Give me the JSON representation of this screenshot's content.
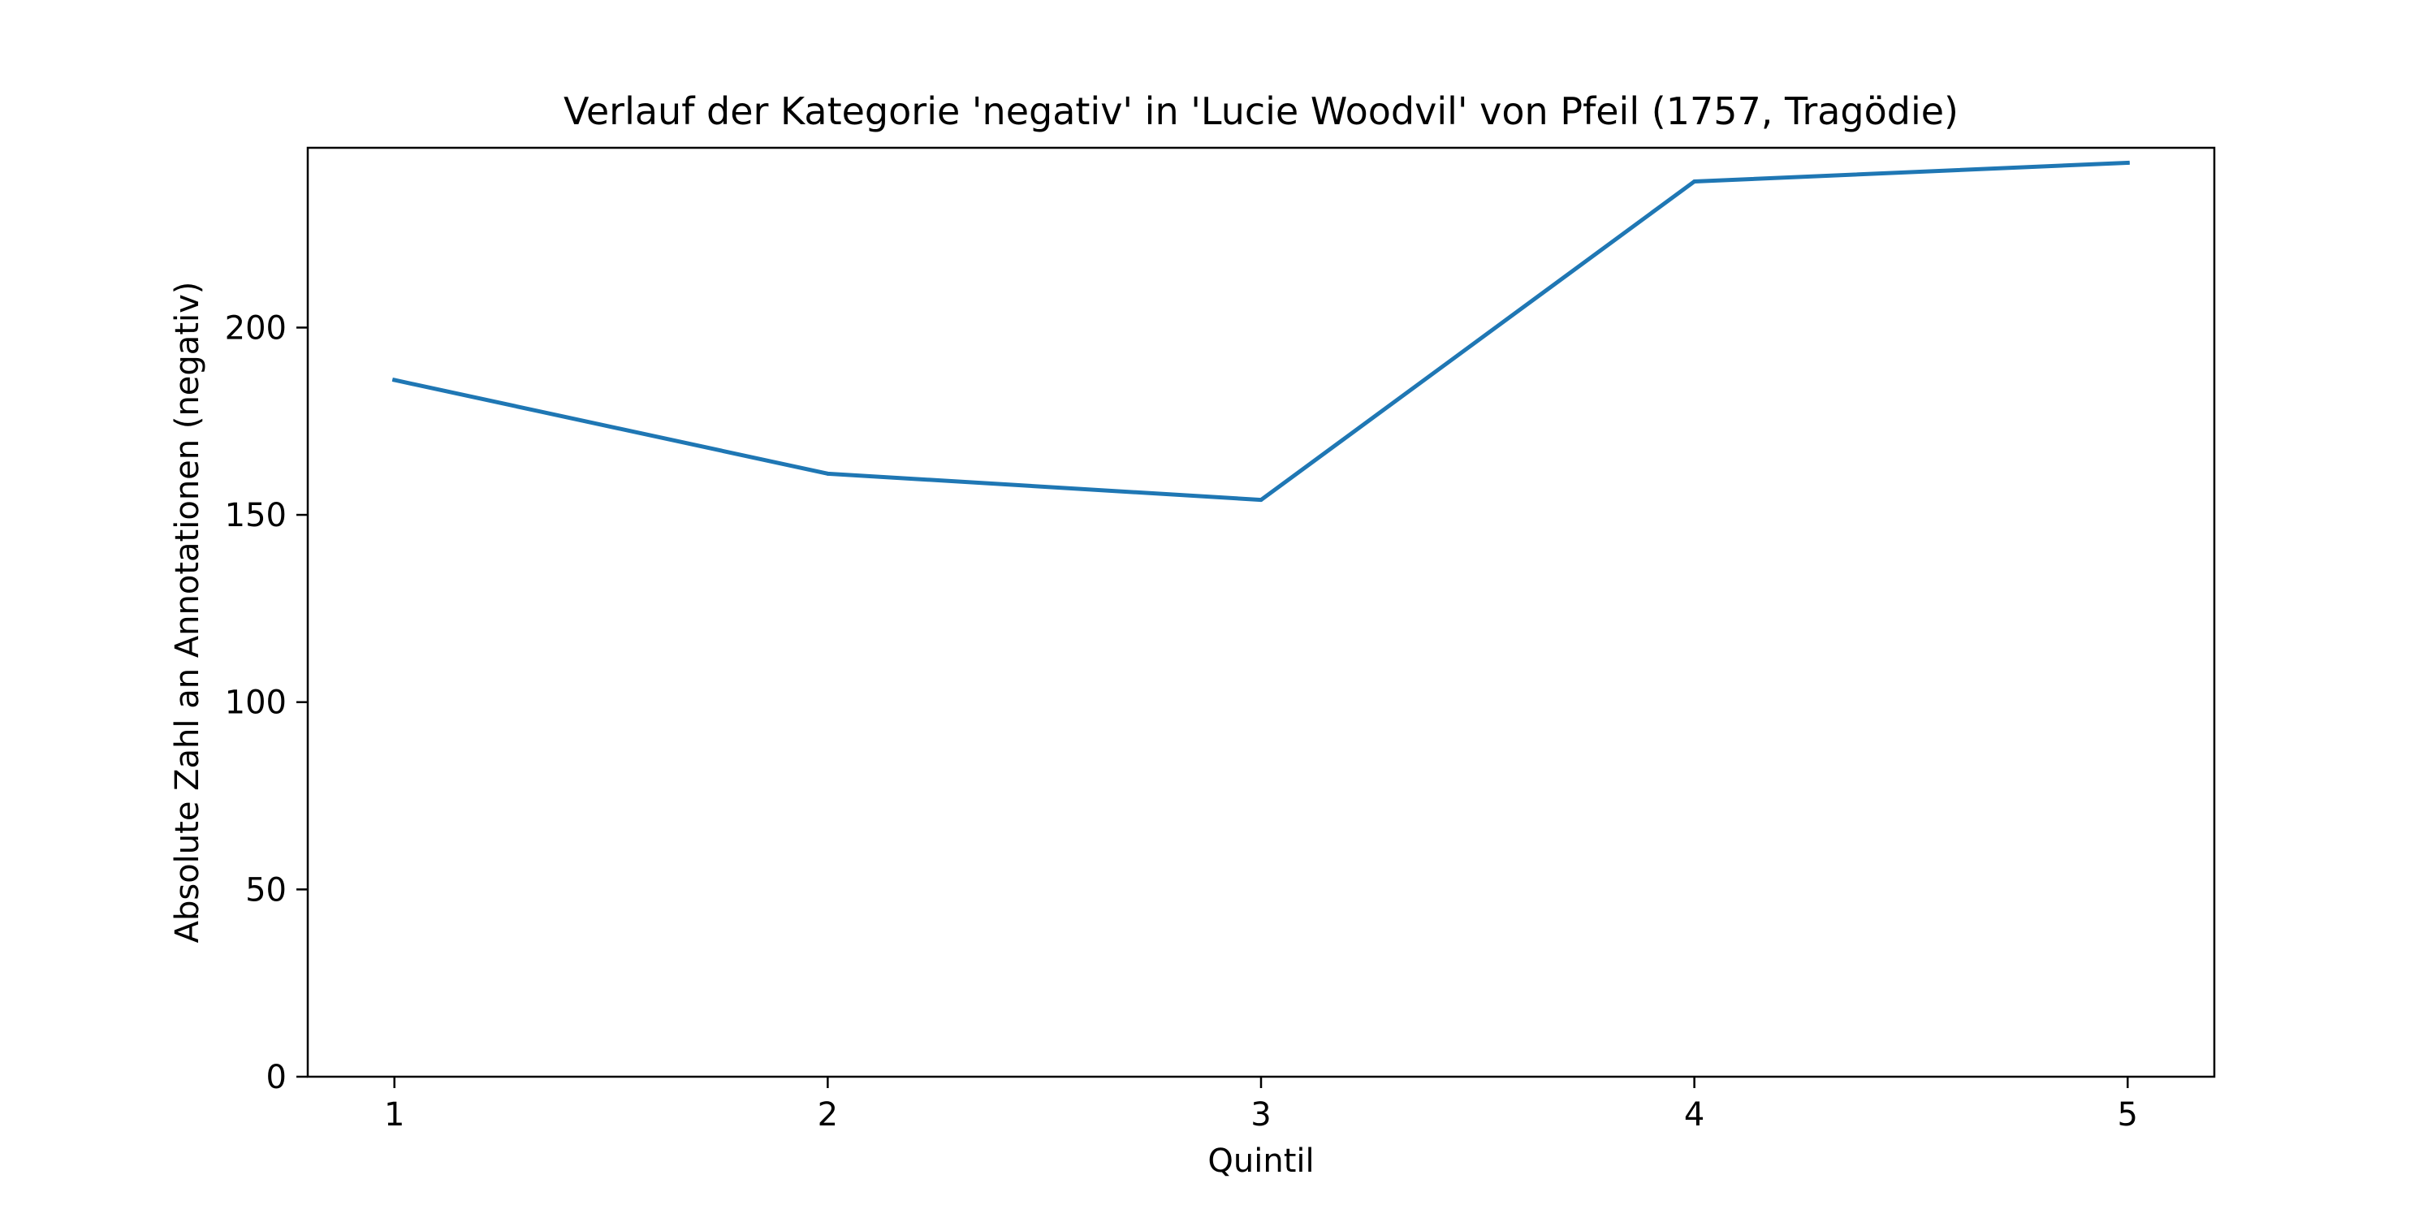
{
  "chart_data": {
    "type": "line",
    "title": "Verlauf der Kategorie 'negativ' in 'Lucie Woodvil' von Pfeil (1757, Tragödie)",
    "xlabel": "Quintil",
    "ylabel": "Absolute Zahl an Annotationen (negativ)",
    "x": [
      1,
      2,
      3,
      4,
      5
    ],
    "x_tick_labels": [
      "1",
      "2",
      "3",
      "4",
      "5"
    ],
    "y_ticks": [
      0,
      50,
      100,
      150,
      200
    ],
    "y_tick_labels": [
      "0",
      "50",
      "100",
      "150",
      "200"
    ],
    "xlim": [
      0.8,
      5.2
    ],
    "ylim": [
      0,
      248
    ],
    "grid": false,
    "series": [
      {
        "values": [
          186,
          161,
          154,
          239,
          244
        ],
        "color": "#1f77b4"
      }
    ]
  }
}
